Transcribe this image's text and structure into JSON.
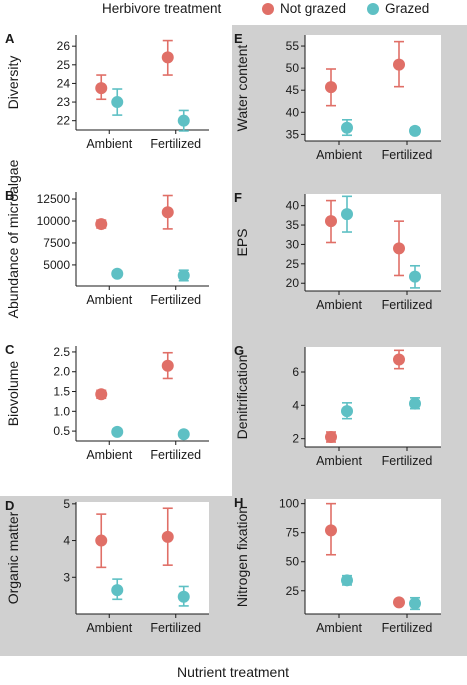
{
  "legend": {
    "title": "Herbivore treatment",
    "items": [
      {
        "label": "Not grazed",
        "color": "#e06f67"
      },
      {
        "label": "Grazed",
        "color": "#5ec0c4"
      }
    ]
  },
  "shared_xlabel": "Nutrient treatment",
  "background_color": "#d0d0d0",
  "chart_data": [
    {
      "type": "scatter",
      "panel": "A",
      "ylabel": "Diversity",
      "categories": [
        "Ambient",
        "Fertilized"
      ],
      "ylim": [
        21.5,
        26.6
      ],
      "yticks": [
        22,
        23,
        24,
        25,
        26
      ],
      "ytick_labels": [
        "22",
        "23",
        "24",
        "25",
        "26"
      ],
      "shaded": false,
      "error_bars": "mean ± SE",
      "series": [
        {
          "name": "Not grazed",
          "values": [
            23.75,
            25.4
          ],
          "lower": [
            23.15,
            24.45
          ],
          "upper": [
            24.45,
            26.3
          ]
        },
        {
          "name": "Grazed",
          "values": [
            23.0,
            22.0
          ],
          "lower": [
            22.3,
            21.45
          ],
          "upper": [
            23.7,
            22.55
          ]
        }
      ]
    },
    {
      "type": "scatter",
      "panel": "B",
      "ylabel": "Abundance of microalgae",
      "categories": [
        "Ambient",
        "Fertilized"
      ],
      "ylim": [
        2600,
        13300
      ],
      "yticks": [
        5000,
        7500,
        10000,
        12500
      ],
      "ytick_labels": [
        "5000",
        "7500",
        "10000",
        "12500"
      ],
      "shaded": false,
      "error_bars": "mean ± SE",
      "series": [
        {
          "name": "Not grazed",
          "values": [
            9650,
            11000
          ],
          "lower": [
            9200,
            9100
          ],
          "upper": [
            10100,
            12900
          ]
        },
        {
          "name": "Grazed",
          "values": [
            4000,
            3800
          ],
          "lower": [
            3700,
            3200
          ],
          "upper": [
            4300,
            4400
          ]
        }
      ]
    },
    {
      "type": "scatter",
      "panel": "C",
      "ylabel": "Biovolume",
      "categories": [
        "Ambient",
        "Fertilized"
      ],
      "ylim": [
        0.25,
        2.65
      ],
      "yticks": [
        0.5,
        1.0,
        1.5,
        2.0,
        2.5
      ],
      "ytick_labels": [
        "0.5",
        "1.0",
        "1.5",
        "2.0",
        "2.5"
      ],
      "shaded": false,
      "error_bars": "mean ± SE",
      "series": [
        {
          "name": "Not grazed",
          "values": [
            1.43,
            2.15
          ],
          "lower": [
            1.33,
            1.83
          ],
          "upper": [
            1.53,
            2.48
          ]
        },
        {
          "name": "Grazed",
          "values": [
            0.48,
            0.42
          ],
          "lower": [
            0.41,
            0.38
          ],
          "upper": [
            0.55,
            0.46
          ]
        }
      ]
    },
    {
      "type": "scatter",
      "panel": "D",
      "ylabel": "Organic matter",
      "categories": [
        "Ambient",
        "Fertilized"
      ],
      "ylim": [
        2.0,
        5.05
      ],
      "yticks": [
        3,
        4,
        5
      ],
      "ytick_labels": [
        "3",
        "4",
        "5"
      ],
      "shaded": true,
      "error_bars": "mean ± SE",
      "series": [
        {
          "name": "Not grazed",
          "values": [
            4.0,
            4.1
          ],
          "lower": [
            3.27,
            3.33
          ],
          "upper": [
            4.72,
            4.88
          ]
        },
        {
          "name": "Grazed",
          "values": [
            2.65,
            2.47
          ],
          "lower": [
            2.4,
            2.22
          ],
          "upper": [
            2.95,
            2.75
          ]
        }
      ]
    },
    {
      "type": "scatter",
      "panel": "E",
      "ylabel": "Water content",
      "categories": [
        "Ambient",
        "Fertilized"
      ],
      "ylim": [
        33.5,
        57.5
      ],
      "yticks": [
        35,
        40,
        45,
        50,
        55
      ],
      "ytick_labels": [
        "35",
        "40",
        "45",
        "50",
        "55"
      ],
      "shaded": true,
      "error_bars": "mean ± SE",
      "series": [
        {
          "name": "Not grazed",
          "values": [
            45.7,
            50.8
          ],
          "lower": [
            41.5,
            45.8
          ],
          "upper": [
            49.8,
            56.0
          ]
        },
        {
          "name": "Grazed",
          "values": [
            36.5,
            35.8
          ],
          "lower": [
            34.8,
            35.1
          ],
          "upper": [
            38.3,
            36.5
          ]
        }
      ]
    },
    {
      "type": "scatter",
      "panel": "F",
      "ylabel": "EPS",
      "categories": [
        "Ambient",
        "Fertilized"
      ],
      "ylim": [
        18.0,
        43.0
      ],
      "yticks": [
        20,
        25,
        30,
        35,
        40
      ],
      "ytick_labels": [
        "20",
        "25",
        "30",
        "35",
        "40"
      ],
      "shaded": true,
      "error_bars": "mean ± SE",
      "series": [
        {
          "name": "Not grazed",
          "values": [
            36.0,
            29.0
          ],
          "lower": [
            30.5,
            22.0
          ],
          "upper": [
            41.3,
            36.0
          ]
        },
        {
          "name": "Grazed",
          "values": [
            37.8,
            21.7
          ],
          "lower": [
            33.2,
            18.8
          ],
          "upper": [
            42.4,
            24.5
          ]
        }
      ]
    },
    {
      "type": "scatter",
      "panel": "G",
      "ylabel": "Denitrification",
      "categories": [
        "Ambient",
        "Fertilized"
      ],
      "ylim": [
        1.5,
        7.5
      ],
      "yticks": [
        2,
        4,
        6
      ],
      "ytick_labels": [
        "2",
        "4",
        "6"
      ],
      "shaded": true,
      "error_bars": "mean ± SE",
      "series": [
        {
          "name": "Not grazed",
          "values": [
            2.1,
            6.75
          ],
          "lower": [
            1.8,
            6.2
          ],
          "upper": [
            2.4,
            7.3
          ]
        },
        {
          "name": "Grazed",
          "values": [
            3.65,
            4.1
          ],
          "lower": [
            3.2,
            3.8
          ],
          "upper": [
            4.15,
            4.45
          ]
        }
      ]
    },
    {
      "type": "scatter",
      "panel": "H",
      "ylabel": "Nitrogen fixation",
      "categories": [
        "Ambient",
        "Fertilized"
      ],
      "ylim": [
        5,
        104
      ],
      "yticks": [
        25,
        50,
        75,
        100
      ],
      "ytick_labels": [
        "25",
        "50",
        "75",
        "100"
      ],
      "shaded": true,
      "error_bars": "mean ± SE",
      "series": [
        {
          "name": "Not grazed",
          "values": [
            77,
            15
          ],
          "lower": [
            56,
            13
          ],
          "upper": [
            100,
            17
          ]
        },
        {
          "name": "Grazed",
          "values": [
            34,
            14
          ],
          "lower": [
            30,
            9
          ],
          "upper": [
            38,
            19
          ]
        }
      ]
    }
  ]
}
